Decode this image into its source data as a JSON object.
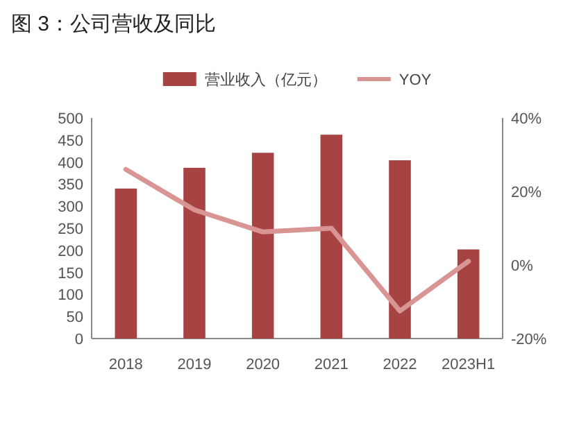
{
  "chart_data": {
    "type": "bar",
    "title": "图 3：公司营收及同比",
    "categories": [
      "2018",
      "2019",
      "2020",
      "2021",
      "2022",
      "2023H1"
    ],
    "series": [
      {
        "name": "营业收入（亿元）",
        "color": "#a84343",
        "values": [
          340,
          387,
          421,
          462,
          404,
          202
        ]
      },
      {
        "name": "YOY",
        "type": "line",
        "axis": "y2",
        "color": "#d99594",
        "values": [
          26,
          15,
          9,
          10,
          -12.5,
          1
        ]
      }
    ],
    "ylim": [
      0,
      500
    ],
    "yticks": [
      0,
      50,
      100,
      150,
      200,
      250,
      300,
      350,
      400,
      450,
      500
    ],
    "y2lim": [
      -20,
      40
    ],
    "y2ticks": [
      {
        "value": -20,
        "label": "-20%"
      },
      {
        "value": 0,
        "label": "0%"
      },
      {
        "value": 20,
        "label": "20%"
      },
      {
        "value": 40,
        "label": "40%"
      }
    ],
    "legend": "top",
    "grid": false
  }
}
